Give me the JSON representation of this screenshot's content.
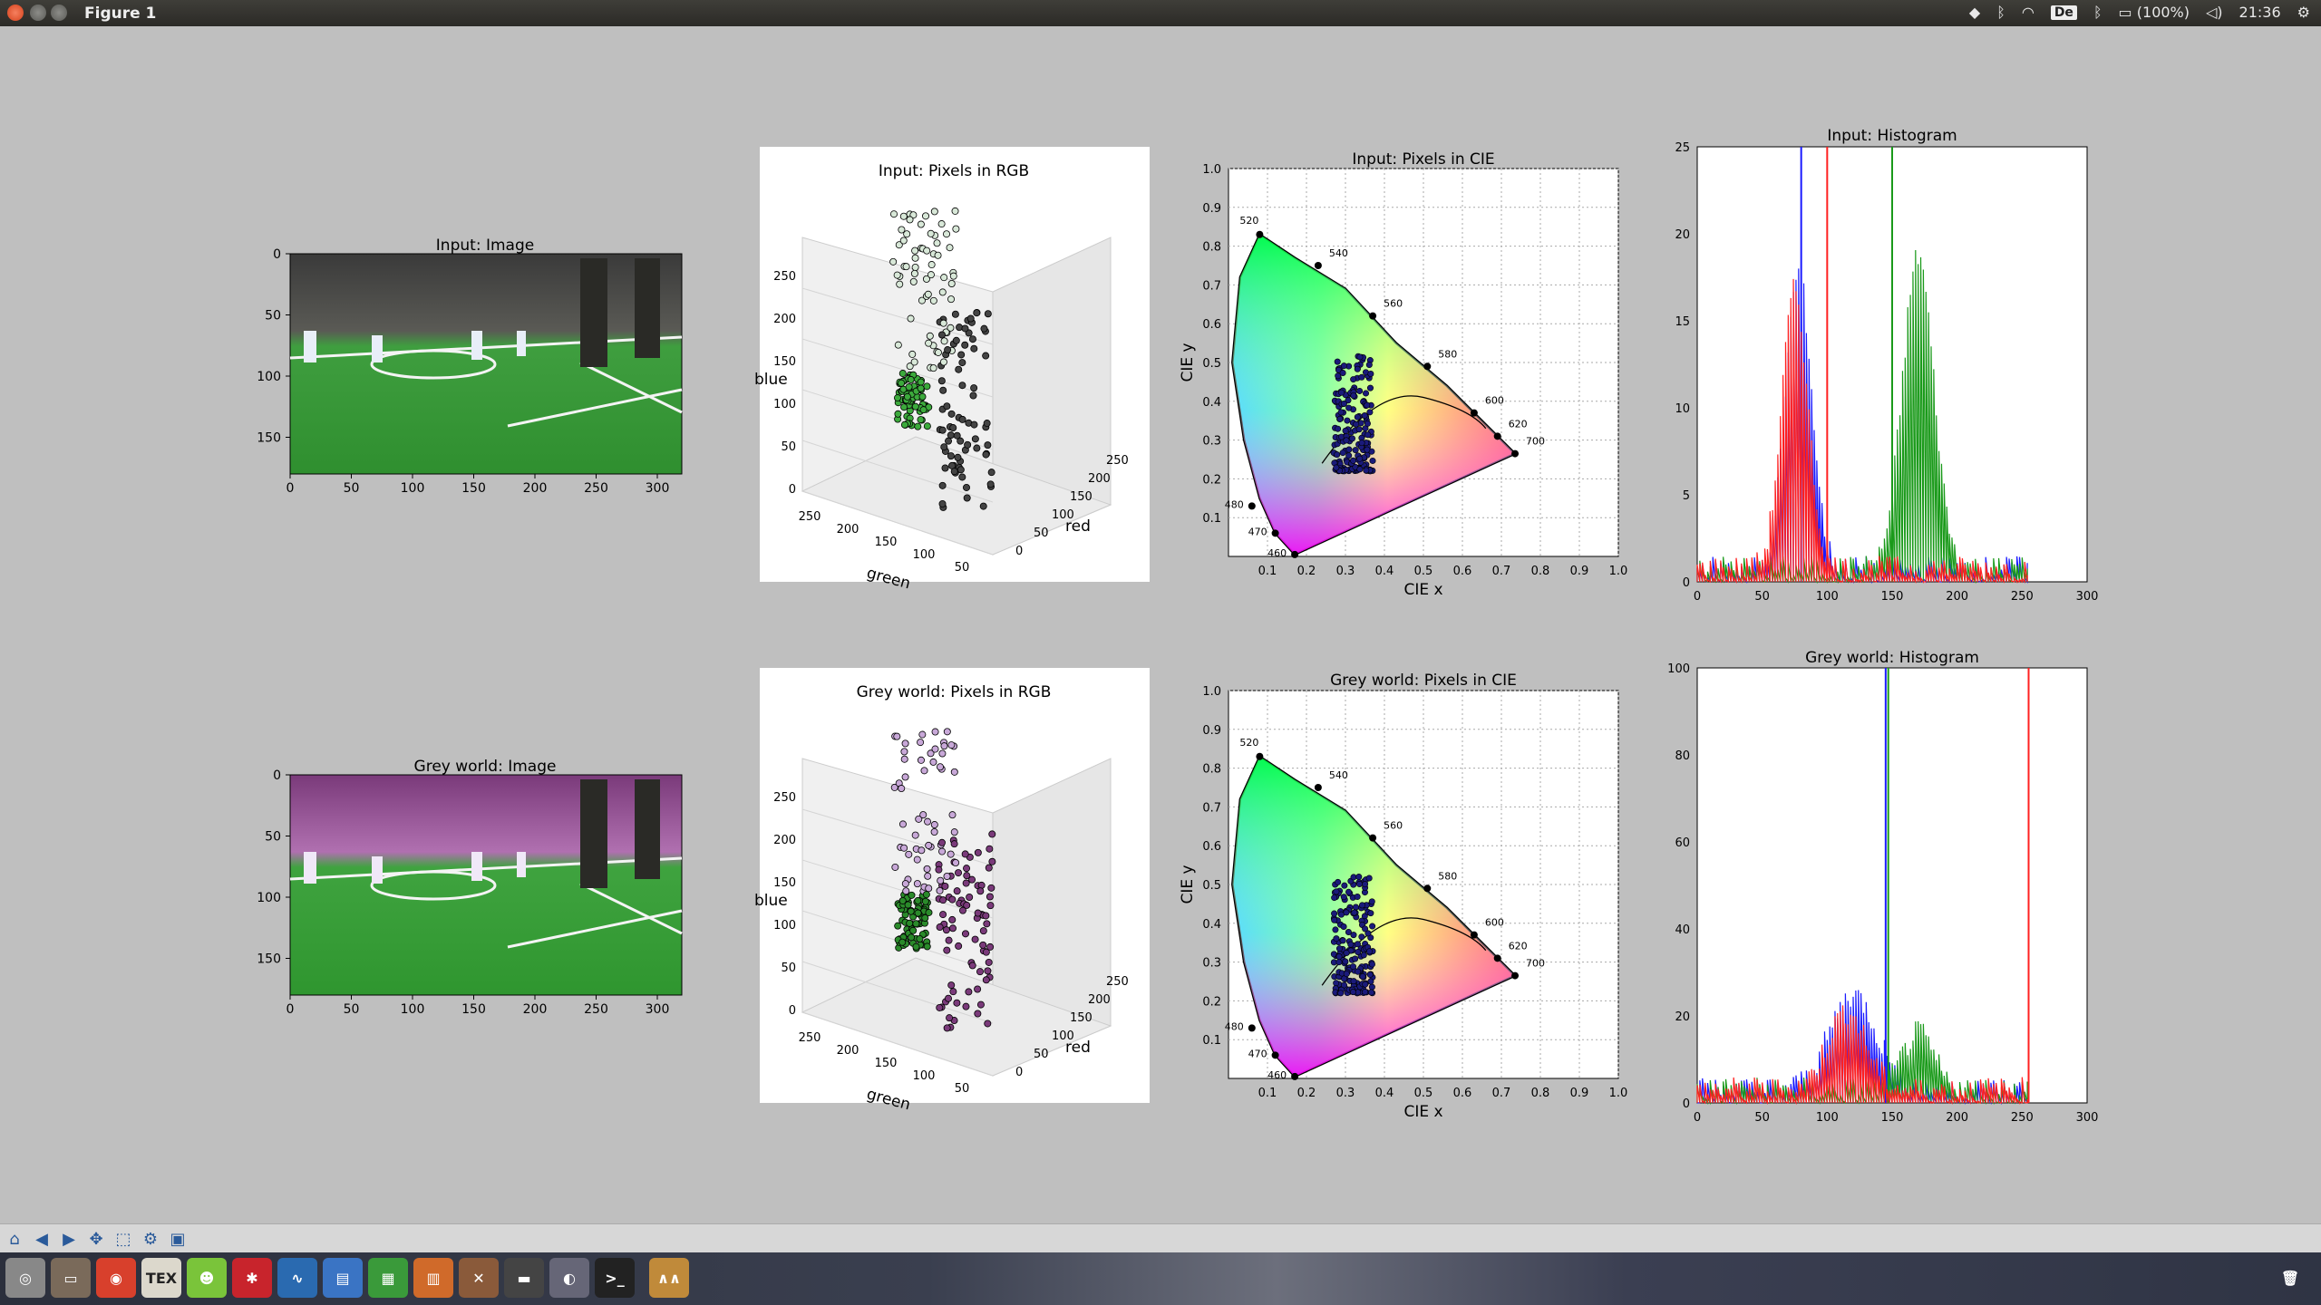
{
  "window": {
    "title": "Figure 1"
  },
  "tray": {
    "keyboard": "De",
    "battery": "(100%)",
    "clock": "21:36"
  },
  "icons": {
    "close": "close-icon",
    "minimize": "minimize-icon",
    "maximize": "maximize-icon",
    "dropbox": "dropbox-icon",
    "bluetooth": "bluetooth-icon",
    "wifi": "wifi-icon",
    "battery": "battery-icon",
    "volume": "volume-icon",
    "settings": "gear-icon"
  },
  "toolbar": {
    "buttons": [
      "home-icon",
      "back-icon",
      "forward-icon",
      "pan-icon",
      "zoom-icon",
      "configure-icon",
      "save-icon"
    ]
  },
  "launcher": {
    "items": [
      "dash-icon",
      "files-icon",
      "chrome-icon",
      "tex-icon",
      "gnome-icon",
      "mendeley-icon",
      "monitor-icon",
      "document-icon",
      "spreadsheet-icon",
      "presentation-icon",
      "settings-icon",
      "window-icon",
      "disk-icon",
      "terminal-icon",
      "wave-icon"
    ],
    "labels": {
      "tex": "TEX"
    },
    "trash": "trash-icon"
  },
  "figure": {
    "panels": {
      "input_image": {
        "title": "Input: Image",
        "xticks": [
          "0",
          "50",
          "100",
          "150",
          "200",
          "250",
          "300"
        ],
        "yticks": [
          "0",
          "50",
          "100",
          "150"
        ]
      },
      "input_rgb": {
        "title": "Input: Pixels in RGB",
        "xlabel": "green",
        "ylabel": "red",
        "zlabel": "blue",
        "zticks": [
          "0",
          "50",
          "100",
          "150",
          "200",
          "250"
        ],
        "gticks": [
          "250",
          "200",
          "150",
          "100",
          "50"
        ],
        "rticks": [
          "0",
          "50",
          "100",
          "150",
          "200",
          "250"
        ]
      },
      "input_cie": {
        "title": "Input: Pixels in CIE",
        "xlabel": "CIE x",
        "ylabel": "CIE y",
        "ticks": [
          "0.1",
          "0.2",
          "0.3",
          "0.4",
          "0.5",
          "0.6",
          "0.7",
          "0.8",
          "0.9",
          "1.0"
        ],
        "wavelengths": [
          "460",
          "470",
          "480",
          "520",
          "540",
          "560",
          "580",
          "600",
          "620",
          "700"
        ]
      },
      "input_hist": {
        "title": "Input: Histogram",
        "xticks": [
          "0",
          "50",
          "100",
          "150",
          "200",
          "250",
          "300"
        ],
        "yticks": [
          "0",
          "5",
          "10",
          "15",
          "20",
          "25"
        ],
        "ymax": 25
      },
      "grey_image": {
        "title": "Grey world: Image",
        "xticks": [
          "0",
          "50",
          "100",
          "150",
          "200",
          "250",
          "300"
        ],
        "yticks": [
          "0",
          "50",
          "100",
          "150"
        ]
      },
      "grey_rgb": {
        "title": "Grey world: Pixels in RGB",
        "xlabel": "green",
        "ylabel": "red",
        "zlabel": "blue",
        "zticks": [
          "0",
          "50",
          "100",
          "150",
          "200",
          "250"
        ],
        "gticks": [
          "250",
          "200",
          "150",
          "100",
          "50"
        ],
        "rticks": [
          "0",
          "50",
          "100",
          "150",
          "200",
          "250"
        ]
      },
      "grey_cie": {
        "title": "Grey world: Pixels in CIE",
        "xlabel": "CIE x",
        "ylabel": "CIE y",
        "ticks": [
          "0.1",
          "0.2",
          "0.3",
          "0.4",
          "0.5",
          "0.6",
          "0.7",
          "0.8",
          "0.9",
          "1.0"
        ],
        "wavelengths": [
          "460",
          "470",
          "480",
          "520",
          "540",
          "560",
          "580",
          "600",
          "620",
          "700"
        ]
      },
      "grey_hist": {
        "title": "Grey world: Histogram",
        "xticks": [
          "0",
          "50",
          "100",
          "150",
          "200",
          "250",
          "300"
        ],
        "yticks": [
          "0",
          "20",
          "40",
          "60",
          "80",
          "100"
        ],
        "ymax": 100
      }
    },
    "colors": {
      "red": "#ff2020",
      "green": "#1a9a1a",
      "blue": "#1a1aff",
      "field": "#2f9a2f"
    }
  }
}
